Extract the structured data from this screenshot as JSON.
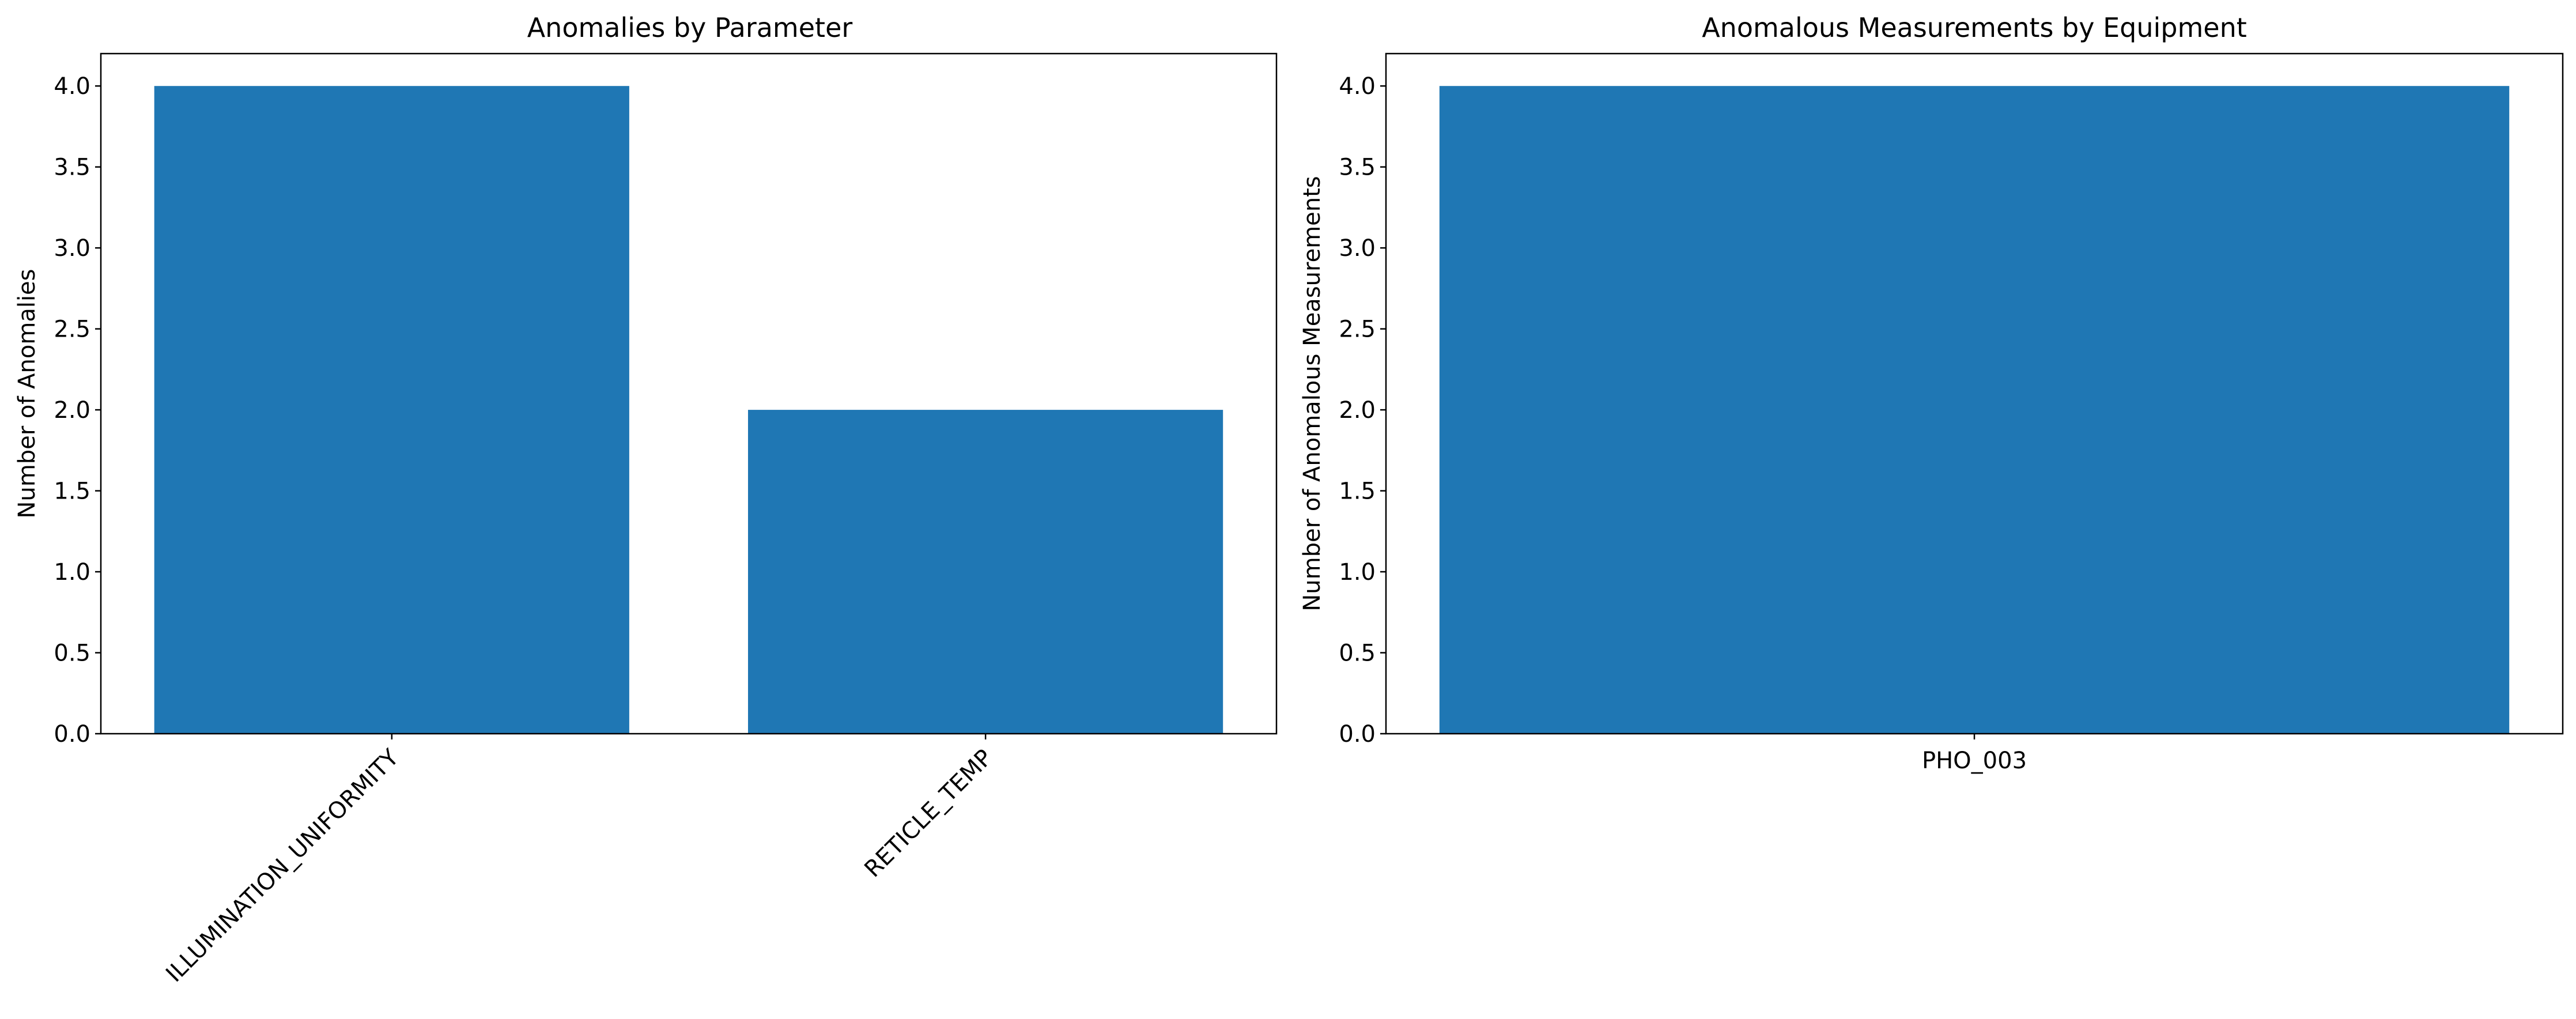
{
  "chart_data": [
    {
      "type": "bar",
      "title": "Anomalies by Parameter",
      "xlabel": "",
      "ylabel": "Number of Anomalies",
      "categories": [
        "ILLUMINATION_UNIFORMITY",
        "RETICLE_TEMP"
      ],
      "values": [
        4,
        2
      ],
      "ylim": [
        0,
        4.2
      ],
      "yticks": [
        "0.0",
        "0.5",
        "1.0",
        "1.5",
        "2.0",
        "2.5",
        "3.0",
        "3.5",
        "4.0"
      ],
      "xtick_rotation": 45,
      "bar_color": "#1f77b4",
      "grid": false,
      "legend": "none"
    },
    {
      "type": "bar",
      "title": "Anomalous Measurements by Equipment",
      "xlabel": "",
      "ylabel": "Number of Anomalous Measurements",
      "categories": [
        "PHO_003"
      ],
      "values": [
        4
      ],
      "ylim": [
        0,
        4.2
      ],
      "yticks": [
        "0.0",
        "0.5",
        "1.0",
        "1.5",
        "2.0",
        "2.5",
        "3.0",
        "3.5",
        "4.0"
      ],
      "xtick_rotation": 0,
      "bar_color": "#1f77b4",
      "grid": false,
      "legend": "none"
    }
  ]
}
